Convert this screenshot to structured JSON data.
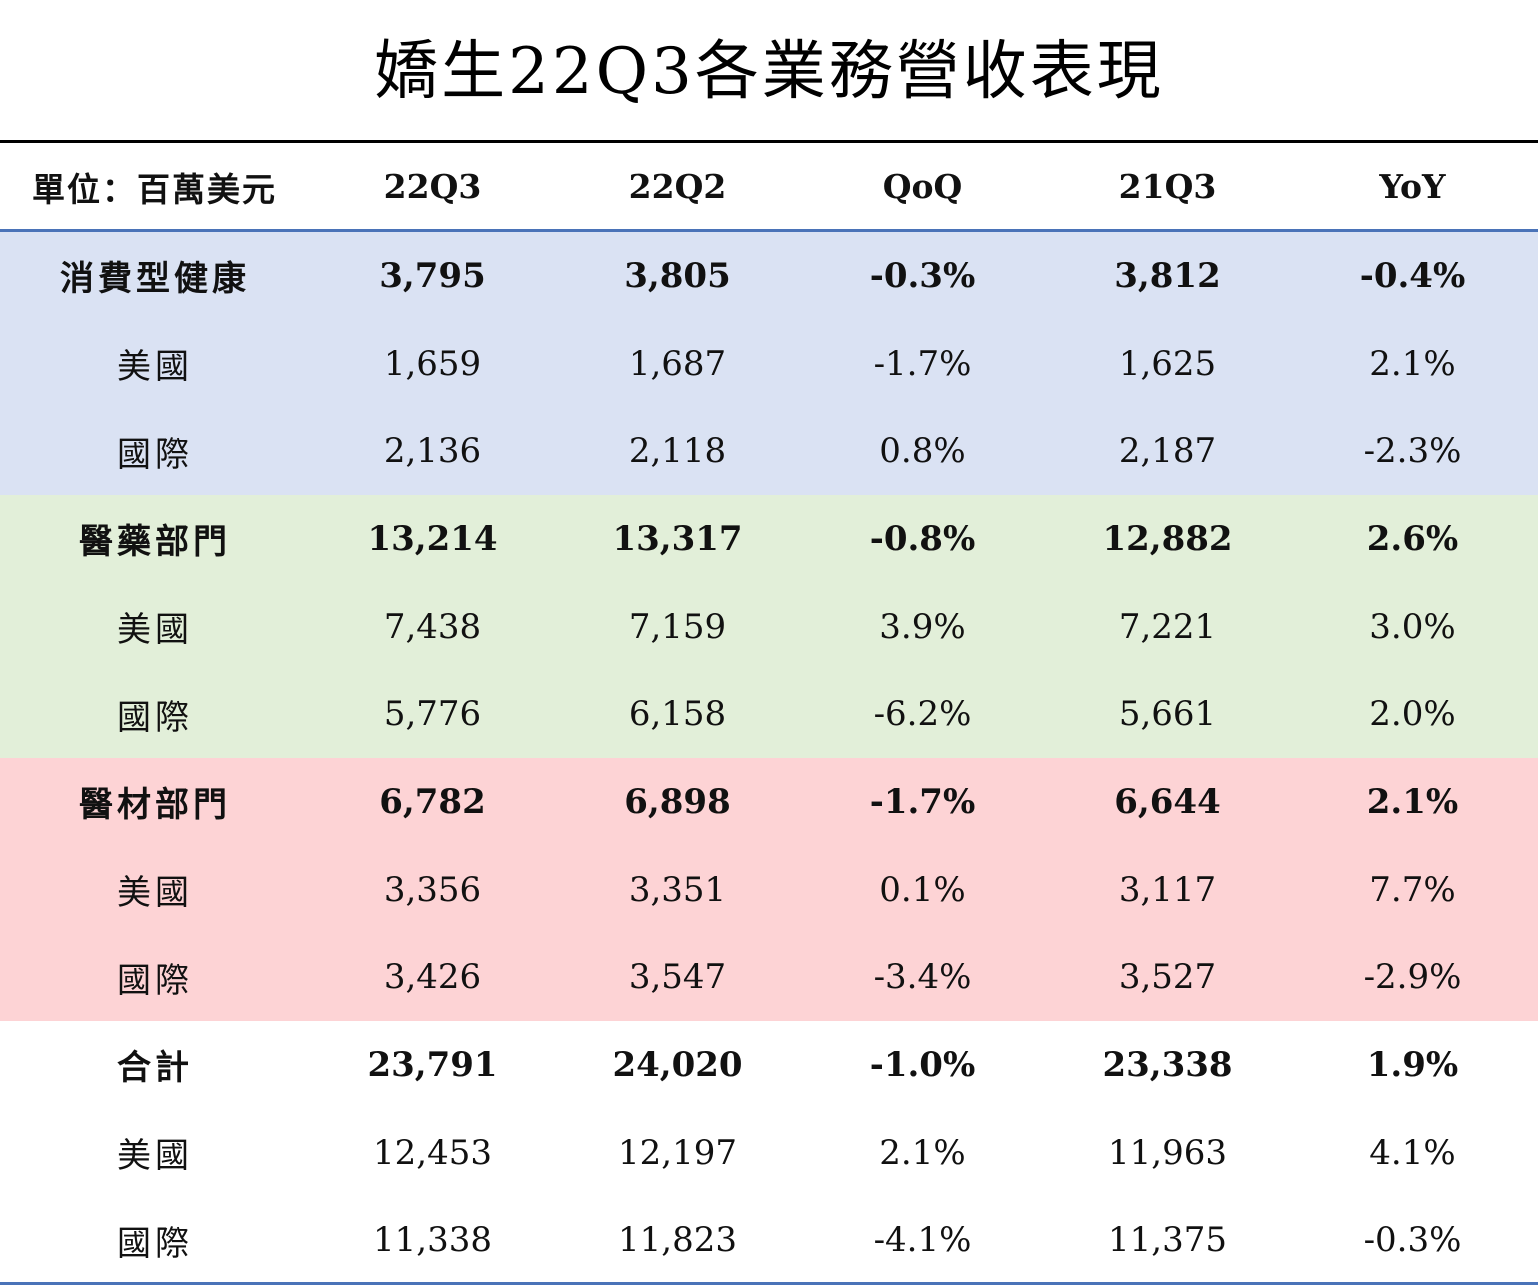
{
  "title": "嬌生22Q3各業務營收表現",
  "colors": {
    "consumer_bg": "#dae2f3",
    "pharma_bg": "#e2efd9",
    "medtech_bg": "#fdd3d5",
    "total_bg": "#ffffff",
    "rule": "#4a73b8"
  },
  "header": {
    "unit": "單位：百萬美元",
    "columns": [
      "22Q3",
      "22Q2",
      "QoQ",
      "21Q3",
      "YoY"
    ]
  },
  "segments": [
    {
      "rows": [
        {
          "label": "消費型健康",
          "values": [
            "3,795",
            "3,805",
            "-0.3%",
            "3,812",
            "-0.4%"
          ]
        },
        {
          "label": "美國",
          "values": [
            "1,659",
            "1,687",
            "-1.7%",
            "1,625",
            "2.1%"
          ]
        },
        {
          "label": "國際",
          "values": [
            "2,136",
            "2,118",
            "0.8%",
            "2,187",
            "-2.3%"
          ]
        }
      ]
    },
    {
      "rows": [
        {
          "label": "醫藥部門",
          "values": [
            "13,214",
            "13,317",
            "-0.8%",
            "12,882",
            "2.6%"
          ]
        },
        {
          "label": "美國",
          "values": [
            "7,438",
            "7,159",
            "3.9%",
            "7,221",
            "3.0%"
          ]
        },
        {
          "label": "國際",
          "values": [
            "5,776",
            "6,158",
            "-6.2%",
            "5,661",
            "2.0%"
          ]
        }
      ]
    },
    {
      "rows": [
        {
          "label": "醫材部門",
          "values": [
            "6,782",
            "6,898",
            "-1.7%",
            "6,644",
            "2.1%"
          ]
        },
        {
          "label": "美國",
          "values": [
            "3,356",
            "3,351",
            "0.1%",
            "3,117",
            "7.7%"
          ]
        },
        {
          "label": "國際",
          "values": [
            "3,426",
            "3,547",
            "-3.4%",
            "3,527",
            "-2.9%"
          ]
        }
      ]
    },
    {
      "rows": [
        {
          "label": "合計",
          "values": [
            "23,791",
            "24,020",
            "-1.0%",
            "23,338",
            "1.9%"
          ]
        },
        {
          "label": "美國",
          "values": [
            "12,453",
            "12,197",
            "2.1%",
            "11,963",
            "4.1%"
          ]
        },
        {
          "label": "國際",
          "values": [
            "11,338",
            "11,823",
            "-4.1%",
            "11,375",
            "-0.3%"
          ]
        }
      ]
    }
  ]
}
